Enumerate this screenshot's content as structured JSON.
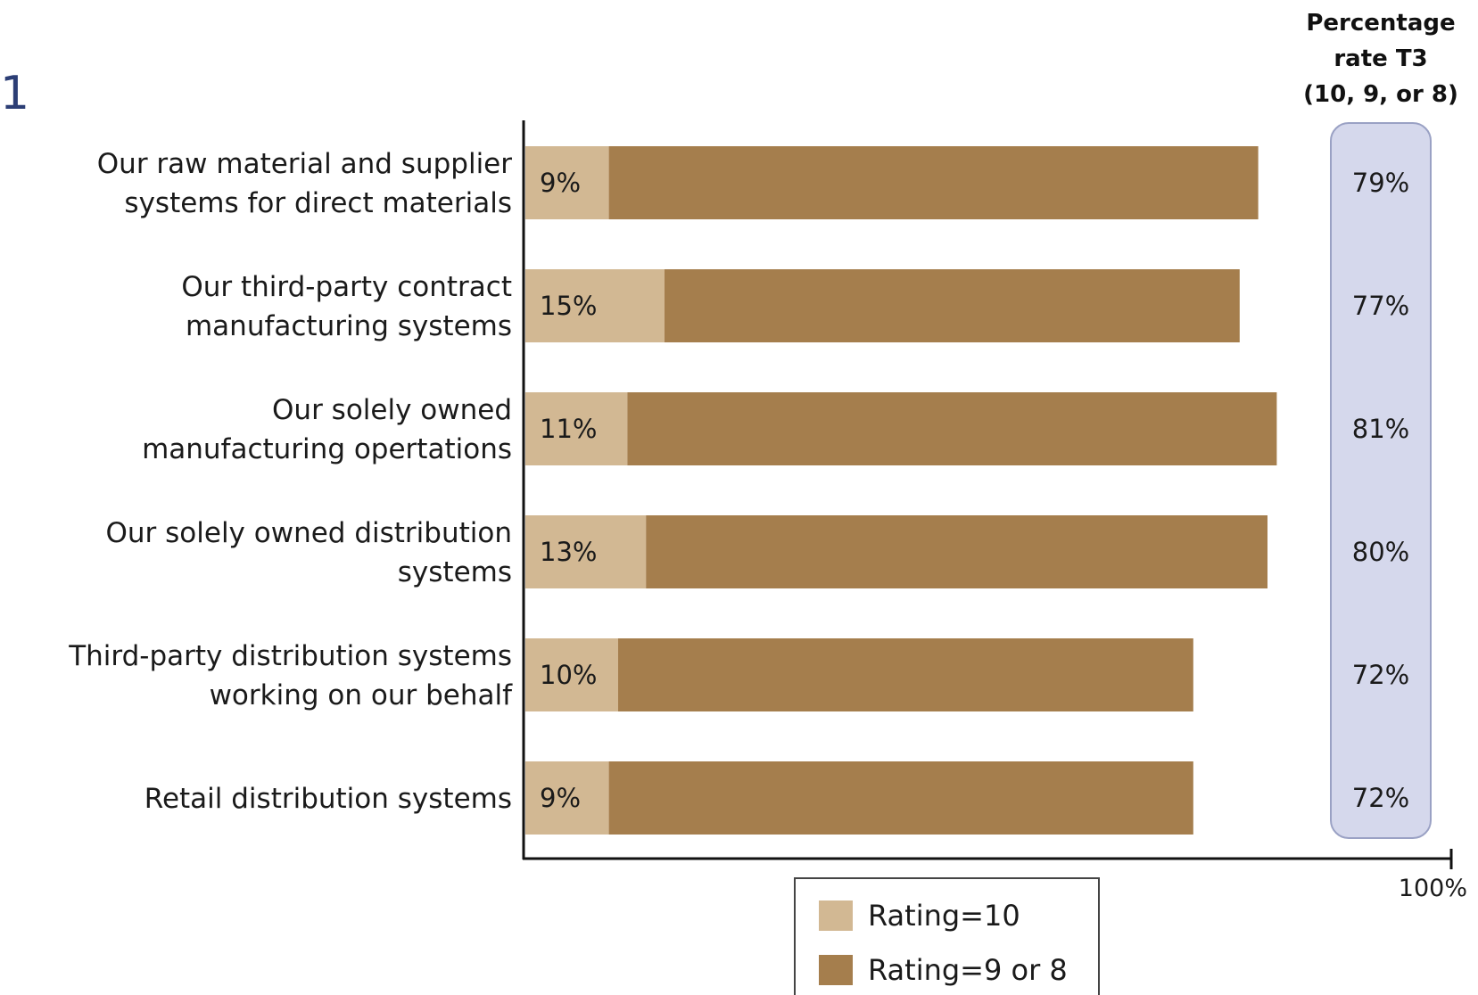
{
  "corner": {
    "glyph": "1"
  },
  "t3_header": [
    "Percentage",
    "rate T3",
    "(10, 9, or 8)"
  ],
  "axis_end_label": "100%",
  "colors": {
    "rating10": "#d2b893",
    "rating98": "#a57e4d",
    "t3_panel_fill": "#d5d8ec",
    "t3_panel_stroke": "#9aa1c4",
    "axis": "#111111"
  },
  "chart_data": {
    "type": "bar",
    "orientation": "horizontal",
    "stacked": true,
    "categories": [
      [
        "Our raw material and supplier",
        "systems for direct materials"
      ],
      [
        "Our third-party contract",
        "manufacturing systems"
      ],
      [
        "Our solely owned",
        "manufacturing opertations"
      ],
      [
        "Our solely owned distribution",
        "systems"
      ],
      [
        "Third-party distribution systems",
        "working on our behalf"
      ],
      [
        "Retail distribution systems"
      ]
    ],
    "series": [
      {
        "name": "Rating=10",
        "values": [
          9,
          15,
          11,
          13,
          10,
          9
        ],
        "labels": [
          "9%",
          "15%",
          "11%",
          "13%",
          "10%",
          "9%"
        ]
      },
      {
        "name": "Rating=9 or 8",
        "values": [
          70,
          62,
          70,
          67,
          62,
          63
        ]
      }
    ],
    "t3_totals": [
      79,
      77,
      81,
      80,
      72,
      72
    ],
    "t3_labels": [
      "79%",
      "77%",
      "81%",
      "80%",
      "72%",
      "72%"
    ],
    "xlim": [
      0,
      100
    ],
    "legend": "bottom-center",
    "grid": false
  }
}
